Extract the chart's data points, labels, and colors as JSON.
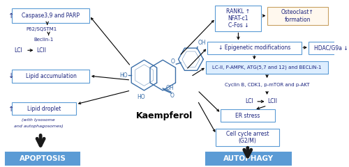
{
  "background_color": "#ffffff",
  "title": "Kaempferol",
  "apoptosis_label": "APOPTOSIS",
  "autophagy_label": "AUTOPHAGY",
  "box_light_fill": "#ffffff",
  "box_blue_fill": "#5b9bd5",
  "box_border_blue": "#5b9bd5",
  "box_border_orange": "#c8a060",
  "box_fill_orange": "#fff8ee",
  "text_dark_blue": "#1a237e",
  "mol_color": "#3a6ea8",
  "arrow_color": "#000000",
  "fat_arrow_color": "#1a1a1a"
}
